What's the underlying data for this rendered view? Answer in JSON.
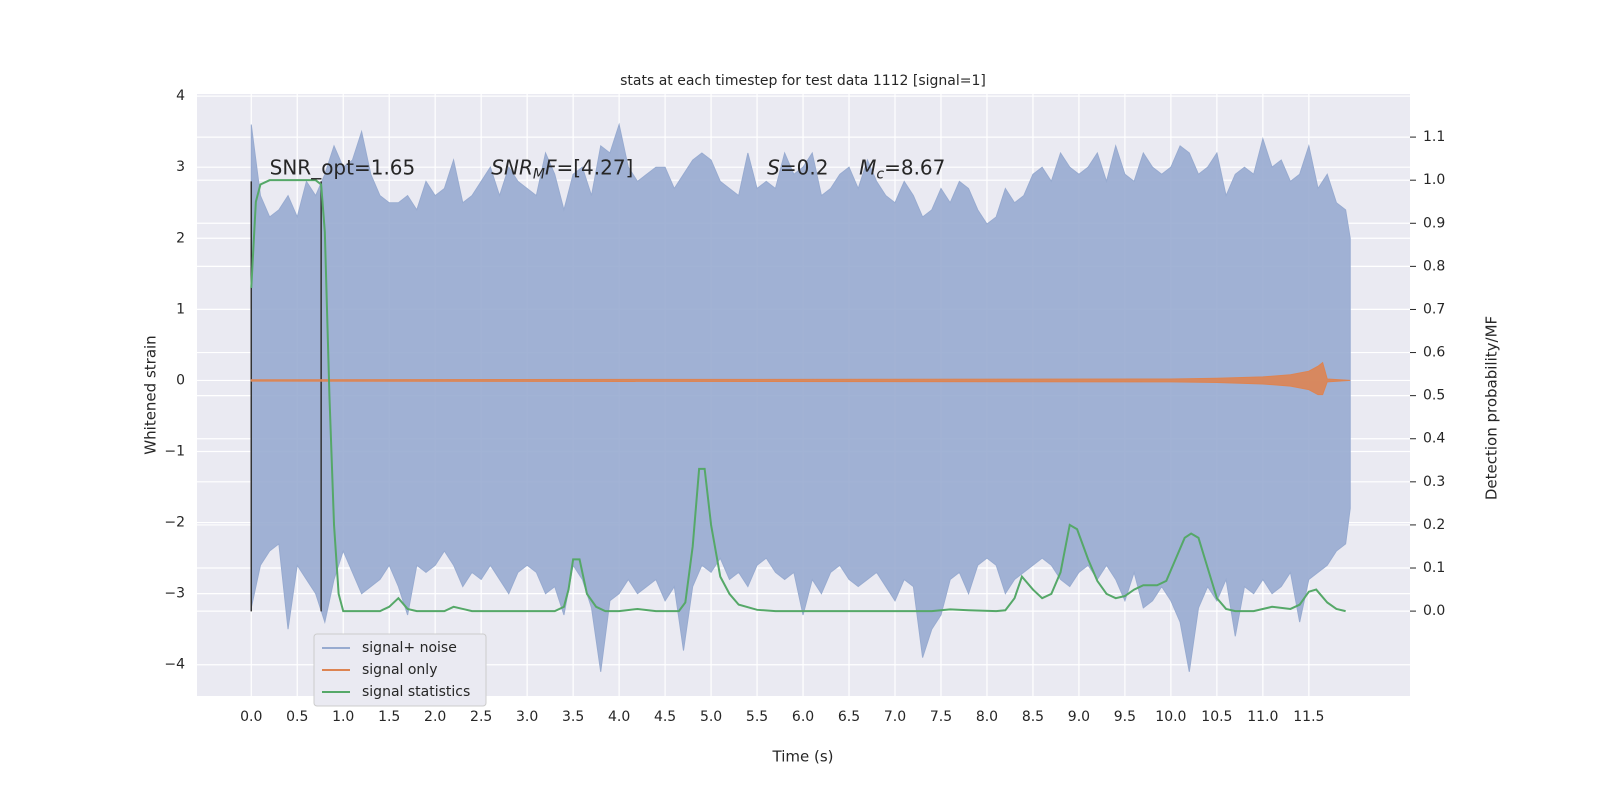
{
  "chart_data": {
    "type": "line",
    "title": "stats at each timestep for test data 1112 [signal=1]",
    "xlabel": "Time (s)",
    "ylabel": "Whitened strain",
    "y2label": "Detection probability/MF",
    "xlim": [
      -0.59,
      12.6
    ],
    "ylim": [
      -4.44,
      4.03
    ],
    "y2lim": [
      -0.197,
      1.2
    ],
    "xticks": [
      {
        "value": 0,
        "label": "0.0"
      },
      0.5,
      {
        "value": 1,
        "label": "1.0"
      },
      1.5,
      {
        "value": 2,
        "label": "2.0"
      },
      2.5,
      {
        "value": 3,
        "label": "3.0"
      },
      3.5,
      {
        "value": 4,
        "label": "4.0"
      },
      4.5,
      {
        "value": 5,
        "label": "5.0"
      },
      5.5,
      {
        "value": 6,
        "label": "6.0"
      },
      6.5,
      {
        "value": 7,
        "label": "7.0"
      },
      7.5,
      {
        "value": 8,
        "label": "8.0"
      },
      8.5,
      {
        "value": 9,
        "label": "9.0"
      },
      9.5,
      {
        "value": 10,
        "label": "10.0"
      },
      10.5,
      {
        "value": 11,
        "label": "11.0"
      },
      11.5
    ],
    "yticks": [
      {
        "value": -4,
        "label": "−4"
      },
      {
        "value": -3,
        "label": "−3"
      },
      {
        "value": -2,
        "label": "−2"
      },
      {
        "value": -1,
        "label": "−1"
      },
      0,
      1,
      2,
      3,
      4
    ],
    "y2ticks": [
      {
        "value": 0,
        "label": "0.0"
      },
      0.1,
      0.2,
      0.3,
      0.4,
      0.5,
      0.6,
      0.7,
      0.8,
      0.9,
      {
        "value": 1,
        "label": "1.0"
      },
      1.1
    ],
    "grid": true,
    "legend": "lower left",
    "series": [
      {
        "name": "signal+ noise",
        "color": "#98abd0",
        "kind": "band",
        "x": [
          0,
          0.1,
          0.2,
          0.3,
          0.4,
          0.5,
          0.6,
          0.7,
          0.8,
          0.9,
          1.0,
          1.1,
          1.2,
          1.3,
          1.4,
          1.5,
          1.6,
          1.7,
          1.8,
          1.9,
          2.0,
          2.1,
          2.2,
          2.3,
          2.4,
          2.5,
          2.6,
          2.7,
          2.8,
          2.9,
          3.0,
          3.1,
          3.2,
          3.3,
          3.4,
          3.5,
          3.6,
          3.7,
          3.8,
          3.9,
          4.0,
          4.1,
          4.2,
          4.3,
          4.4,
          4.5,
          4.6,
          4.7,
          4.8,
          4.9,
          5.0,
          5.1,
          5.2,
          5.3,
          5.4,
          5.5,
          5.6,
          5.7,
          5.8,
          5.9,
          6.0,
          6.1,
          6.2,
          6.3,
          6.4,
          6.5,
          6.6,
          6.7,
          6.8,
          6.9,
          7.0,
          7.1,
          7.2,
          7.3,
          7.4,
          7.5,
          7.6,
          7.7,
          7.8,
          7.9,
          8.0,
          8.1,
          8.2,
          8.3,
          8.4,
          8.5,
          8.6,
          8.7,
          8.8,
          8.9,
          9.0,
          9.1,
          9.2,
          9.3,
          9.4,
          9.5,
          9.6,
          9.7,
          9.8,
          9.9,
          10.0,
          10.1,
          10.2,
          10.3,
          10.4,
          10.5,
          10.6,
          10.7,
          10.8,
          10.9,
          11.0,
          11.1,
          11.2,
          11.3,
          11.4,
          11.5,
          11.6,
          11.7,
          11.8,
          11.9,
          11.95
        ],
        "high": [
          3.6,
          2.6,
          2.3,
          2.4,
          2.6,
          2.3,
          2.8,
          2.6,
          2.9,
          3.3,
          3.0,
          3.1,
          3.5,
          2.9,
          2.6,
          2.5,
          2.5,
          2.6,
          2.4,
          2.8,
          2.6,
          2.7,
          3.1,
          2.5,
          2.6,
          2.8,
          3.0,
          2.6,
          3.0,
          2.8,
          2.7,
          2.6,
          3.2,
          2.9,
          2.4,
          2.9,
          3.0,
          2.6,
          3.3,
          3.2,
          3.6,
          3.0,
          2.8,
          2.9,
          3.0,
          3.0,
          2.7,
          2.9,
          3.1,
          3.2,
          3.1,
          2.8,
          2.7,
          2.6,
          3.2,
          2.7,
          2.8,
          2.7,
          3.2,
          2.9,
          3.0,
          3.2,
          2.6,
          2.7,
          2.9,
          3.0,
          2.7,
          3.1,
          2.8,
          2.6,
          2.5,
          2.8,
          2.6,
          2.3,
          2.4,
          2.7,
          2.5,
          2.8,
          2.7,
          2.4,
          2.2,
          2.3,
          2.7,
          2.5,
          2.6,
          2.9,
          3.0,
          2.8,
          3.2,
          3.0,
          2.9,
          3.0,
          3.2,
          2.8,
          3.3,
          2.9,
          2.8,
          3.2,
          3.0,
          2.9,
          3.0,
          3.3,
          3.2,
          2.9,
          3.0,
          3.2,
          2.6,
          2.9,
          3.0,
          2.9,
          3.4,
          3.0,
          3.1,
          2.8,
          2.9,
          3.3,
          2.7,
          2.9,
          2.5,
          2.4,
          2.0
        ],
        "low": [
          -3.2,
          -2.6,
          -2.4,
          -2.3,
          -3.5,
          -2.6,
          -2.8,
          -3.0,
          -3.4,
          -2.8,
          -2.4,
          -2.7,
          -3.0,
          -2.9,
          -2.8,
          -2.6,
          -2.9,
          -3.3,
          -2.6,
          -2.7,
          -2.6,
          -2.4,
          -2.6,
          -2.9,
          -2.7,
          -2.8,
          -2.6,
          -2.8,
          -3.0,
          -2.7,
          -2.6,
          -2.7,
          -3.0,
          -2.9,
          -3.3,
          -2.6,
          -2.8,
          -3.2,
          -4.1,
          -3.1,
          -3.0,
          -2.8,
          -3.0,
          -2.9,
          -2.8,
          -3.1,
          -2.9,
          -3.8,
          -2.9,
          -2.6,
          -2.7,
          -2.5,
          -2.8,
          -2.7,
          -2.9,
          -2.6,
          -2.5,
          -2.7,
          -2.8,
          -2.7,
          -3.3,
          -2.8,
          -3.0,
          -2.7,
          -2.6,
          -2.8,
          -2.9,
          -2.8,
          -2.7,
          -2.9,
          -3.1,
          -2.8,
          -2.9,
          -3.9,
          -3.5,
          -3.3,
          -2.8,
          -2.7,
          -3.0,
          -2.6,
          -2.5,
          -2.6,
          -3.0,
          -2.8,
          -2.7,
          -2.6,
          -2.5,
          -2.6,
          -2.8,
          -2.9,
          -2.7,
          -2.6,
          -2.8,
          -2.6,
          -2.8,
          -3.1,
          -2.7,
          -3.2,
          -3.1,
          -2.9,
          -3.1,
          -3.4,
          -4.1,
          -3.2,
          -2.9,
          -3.1,
          -2.8,
          -3.6,
          -2.9,
          -3.0,
          -2.8,
          -3.0,
          -2.9,
          -2.7,
          -3.4,
          -2.8,
          -2.7,
          -2.6,
          -2.4,
          -2.3,
          -1.8
        ]
      },
      {
        "name": "signal only",
        "color": "#dd8452",
        "kind": "band",
        "x": [
          0,
          10,
          10.5,
          11.0,
          11.3,
          11.5,
          11.6,
          11.65,
          11.7,
          11.95
        ],
        "high": [
          0.01,
          0.02,
          0.03,
          0.05,
          0.08,
          0.13,
          0.2,
          0.25,
          0.02,
          0.0
        ],
        "low": [
          -0.01,
          -0.02,
          -0.03,
          -0.05,
          -0.08,
          -0.13,
          -0.2,
          -0.2,
          -0.02,
          0.0
        ]
      },
      {
        "name": "signal statistics",
        "color": "#55a868",
        "kind": "line",
        "axis": "y2",
        "x": [
          0,
          0.05,
          0.1,
          0.2,
          0.5,
          0.7,
          0.76,
          0.8,
          0.85,
          0.9,
          0.95,
          1.0,
          1.4,
          1.5,
          1.6,
          1.7,
          1.8,
          2.1,
          2.2,
          2.3,
          2.4,
          3.3,
          3.4,
          3.45,
          3.5,
          3.57,
          3.65,
          3.75,
          3.85,
          4.0,
          4.2,
          4.4,
          4.65,
          4.72,
          4.8,
          4.87,
          4.93,
          5.0,
          5.1,
          5.2,
          5.3,
          5.5,
          5.7,
          7.4,
          7.6,
          7.8,
          8.1,
          8.2,
          8.3,
          8.38,
          8.5,
          8.6,
          8.7,
          8.8,
          8.9,
          8.98,
          9.1,
          9.2,
          9.3,
          9.4,
          9.5,
          9.6,
          9.7,
          9.85,
          9.95,
          10.05,
          10.15,
          10.22,
          10.3,
          10.4,
          10.5,
          10.6,
          10.7,
          10.9,
          11.1,
          11.3,
          11.4,
          11.5,
          11.58,
          11.7,
          11.8,
          11.9
        ],
        "values": [
          0.75,
          0.95,
          0.99,
          1.0,
          1.0,
          1.0,
          0.99,
          0.88,
          0.5,
          0.2,
          0.04,
          0.0,
          0.0,
          0.01,
          0.03,
          0.005,
          0.0,
          0.0,
          0.01,
          0.005,
          0.0,
          0.0,
          0.01,
          0.05,
          0.12,
          0.12,
          0.04,
          0.01,
          0.0,
          0.0,
          0.005,
          0.0,
          0.0,
          0.02,
          0.15,
          0.33,
          0.33,
          0.2,
          0.08,
          0.04,
          0.015,
          0.003,
          0.0,
          0.0,
          0.004,
          0.002,
          0.0,
          0.002,
          0.03,
          0.08,
          0.05,
          0.03,
          0.04,
          0.09,
          0.2,
          0.19,
          0.12,
          0.07,
          0.04,
          0.03,
          0.035,
          0.05,
          0.06,
          0.06,
          0.07,
          0.12,
          0.17,
          0.18,
          0.17,
          0.1,
          0.03,
          0.005,
          0.0,
          0.0,
          0.01,
          0.005,
          0.015,
          0.045,
          0.05,
          0.02,
          0.005,
          0.0
        ]
      }
    ],
    "vlines": {
      "x": [
        0,
        0.76
      ],
      "low": -3.25,
      "high": 2.8,
      "color": "#333333"
    },
    "annotations": [
      {
        "x": 0.2,
        "y": 2.9,
        "parts": [
          {
            "text": "SNR_opt=1.65"
          }
        ]
      },
      {
        "x": 2.61,
        "y": 2.9,
        "parts": [
          {
            "text": "SNR",
            "italic": true
          },
          {
            "text": "M",
            "italic": true,
            "sub": true
          },
          {
            "text": "F",
            "italic": true
          },
          {
            "text": "=[4.27]"
          }
        ]
      },
      {
        "x": 5.61,
        "y": 2.9,
        "parts": [
          {
            "text": "S",
            "italic": true
          },
          {
            "text": "=0.2"
          }
        ]
      },
      {
        "x": 6.61,
        "y": 2.9,
        "parts": [
          {
            "text": "M",
            "italic": true
          },
          {
            "text": "c",
            "italic": true,
            "sub": true
          },
          {
            "text": "=8.67"
          }
        ]
      }
    ]
  }
}
